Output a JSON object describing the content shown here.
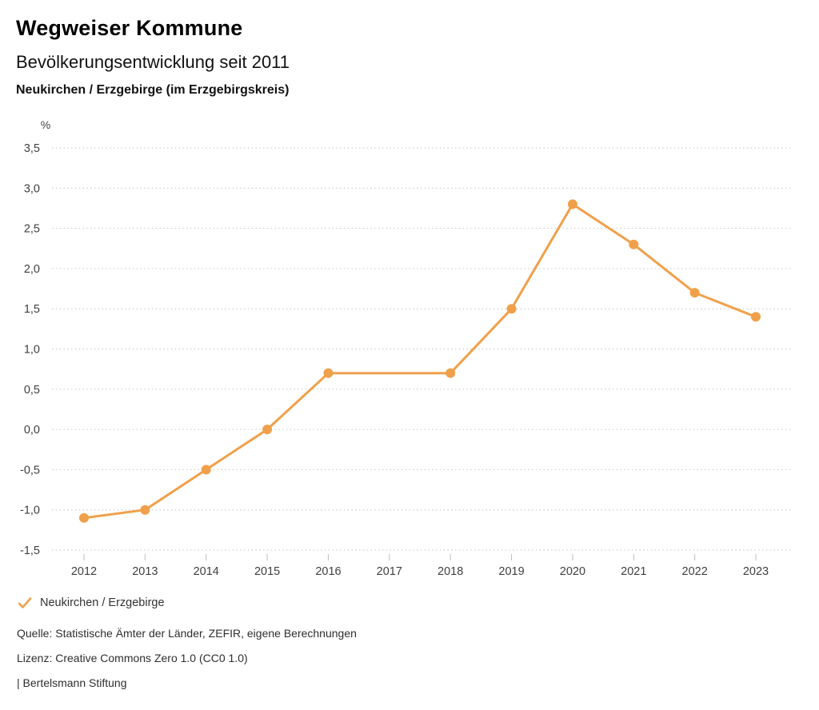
{
  "header": {
    "title": "Wegweiser Kommune",
    "subtitle": "Bevölkerungsentwicklung seit 2011",
    "region": "Neukirchen / Erzgebirge (im Erzgebirgskreis)"
  },
  "chart_data": {
    "type": "line",
    "title": "Bevölkerungsentwicklung seit 2011",
    "unit_label": "%",
    "categories": [
      "2012",
      "2013",
      "2014",
      "2015",
      "2016",
      "2017",
      "2018",
      "2019",
      "2020",
      "2021",
      "2022",
      "2023"
    ],
    "series": [
      {
        "name": "Neukirchen / Erzgebirge",
        "values": [
          -1.1,
          -1.0,
          -0.5,
          0.0,
          0.7,
          null,
          0.7,
          1.5,
          2.8,
          2.3,
          1.7,
          1.4
        ],
        "color": "#F0A04B"
      }
    ],
    "ylim": [
      -1.5,
      3.5
    ],
    "y_ticks": [
      3.5,
      3.0,
      2.5,
      2.0,
      1.5,
      1.0,
      0.5,
      0.0,
      -0.5,
      -1.0,
      -1.5
    ],
    "y_tick_labels": [
      "3,5",
      "3,0",
      "2,5",
      "2,0",
      "1,5",
      "1,0",
      "0,5",
      "0,0",
      "-0,5",
      "-1,0",
      "-1,5"
    ],
    "grid": "horizontal-dotted",
    "legend_position": "bottom-left"
  },
  "legend": {
    "check_icon": "checkmark",
    "label": "Neukirchen / Erzgebirge",
    "color": "#F0A04B"
  },
  "footer": {
    "source": "Quelle: Statistische Ämter der Länder, ZEFIR, eigene Berechnungen",
    "license": "Lizenz: Creative Commons Zero 1.0 (CC0 1.0)",
    "attribution": "| Bertelsmann Stiftung"
  },
  "colors": {
    "accent": "#F0A04B",
    "grid": "#c6c6c6",
    "tick": "#bdbdbd",
    "axis_text": "#3f3f3f",
    "title_text": "#000000",
    "background": "#ffffff"
  }
}
